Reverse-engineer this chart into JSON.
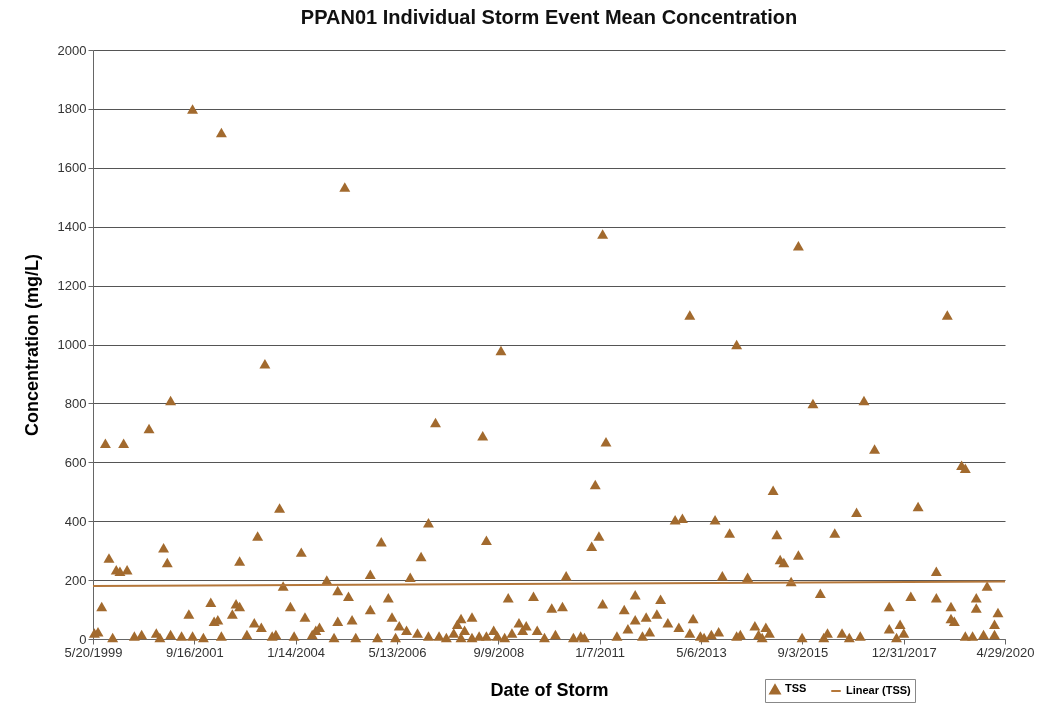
{
  "chart_data": {
    "type": "scatter",
    "title": "PPAN01 Individual Storm Event Mean Concentration",
    "xlabel": "Date of Storm",
    "ylabel": "Concentration (mg/L)",
    "xlim": [
      "1999-05-20",
      "2020-04-29"
    ],
    "xticks": [
      {
        "value": "1999-05-20",
        "label": "5/20/1999"
      },
      {
        "value": "2001-09-16",
        "label": "9/16/2001"
      },
      {
        "value": "2004-01-14",
        "label": "1/14/2004"
      },
      {
        "value": "2006-05-13",
        "label": "5/13/2006"
      },
      {
        "value": "2008-09-09",
        "label": "9/9/2008"
      },
      {
        "value": "2011-01-07",
        "label": "1/7/2011"
      },
      {
        "value": "2013-05-06",
        "label": "5/6/2013"
      },
      {
        "value": "2015-09-03",
        "label": "9/3/2015"
      },
      {
        "value": "2017-12-31",
        "label": "12/31/2017"
      },
      {
        "value": "2020-04-29",
        "label": "4/29/2020"
      }
    ],
    "ylim": [
      0,
      2000
    ],
    "yticks": [
      0,
      200,
      400,
      600,
      800,
      1000,
      1200,
      1400,
      1600,
      1800,
      2000
    ],
    "grid": "y",
    "legend": "bottom right",
    "series": [
      {
        "name": "TSS",
        "type": "scatter",
        "marker": "triangle",
        "color": "#a26a2e",
        "x": [
          "1999-06",
          "1999-07",
          "1999-08",
          "1999-09",
          "1999-10",
          "1999-11",
          "1999-12",
          "2000-01",
          "2000-02",
          "2000-03",
          "2000-05",
          "2000-07",
          "2000-09",
          "2000-11",
          "2000-12",
          "2001-01",
          "2001-02",
          "2001-03",
          "2001-03",
          "2001-06",
          "2001-08",
          "2001-09",
          "2001-09",
          "2001-12",
          "2002-02",
          "2002-03",
          "2002-04",
          "2002-05",
          "2002-05",
          "2002-08",
          "2002-09",
          "2002-10",
          "2002-10",
          "2002-12",
          "2003-02",
          "2003-03",
          "2003-04",
          "2003-05",
          "2003-07",
          "2003-08",
          "2003-09",
          "2003-10",
          "2003-12",
          "2004-01",
          "2004-03",
          "2004-04",
          "2004-06",
          "2004-07",
          "2004-08",
          "2004-10",
          "2004-12",
          "2005-01",
          "2005-01",
          "2005-03",
          "2005-04",
          "2005-05",
          "2005-06",
          "2005-10",
          "2005-10",
          "2005-12",
          "2006-01",
          "2006-03",
          "2006-04",
          "2006-05",
          "2006-06",
          "2006-08",
          "2006-09",
          "2006-11",
          "2006-12",
          "2007-02",
          "2007-02",
          "2007-04",
          "2007-05",
          "2007-07",
          "2007-09",
          "2007-10",
          "2007-11",
          "2007-11",
          "2007-12",
          "2008-02",
          "2008-02",
          "2008-04",
          "2008-05",
          "2008-06",
          "2008-06",
          "2008-08",
          "2008-09",
          "2008-10",
          "2008-11",
          "2008-12",
          "2009-01",
          "2009-03",
          "2009-04",
          "2009-05",
          "2009-07",
          "2009-08",
          "2009-10",
          "2009-12",
          "2010-01",
          "2010-03",
          "2010-04",
          "2010-06",
          "2010-08",
          "2010-09",
          "2010-11",
          "2010-12",
          "2011-01",
          "2011-02",
          "2011-02",
          "2011-03",
          "2011-06",
          "2011-08",
          "2011-09",
          "2011-11",
          "2011-11",
          "2012-01",
          "2012-02",
          "2012-03",
          "2012-05",
          "2012-06",
          "2012-08",
          "2012-10",
          "2012-11",
          "2012-12",
          "2013-02",
          "2013-02",
          "2013-03",
          "2013-05",
          "2013-06",
          "2013-08",
          "2013-09",
          "2013-10",
          "2013-11",
          "2014-01",
          "2014-03",
          "2014-03",
          "2014-04",
          "2014-06",
          "2014-08",
          "2014-09",
          "2014-10",
          "2014-11",
          "2014-12",
          "2015-01",
          "2015-02",
          "2015-03",
          "2015-04",
          "2015-06",
          "2015-08",
          "2015-08",
          "2015-09",
          "2015-12",
          "2016-02",
          "2016-03",
          "2016-04",
          "2016-06",
          "2016-08",
          "2016-10",
          "2016-12",
          "2017-01",
          "2017-02",
          "2017-05",
          "2017-09",
          "2017-09",
          "2017-11",
          "2017-12",
          "2018-01",
          "2018-03",
          "2018-05",
          "2018-10",
          "2018-10",
          "2019-01",
          "2019-02",
          "2019-02",
          "2019-03",
          "2019-05",
          "2019-06",
          "2019-06",
          "2019-08",
          "2019-09",
          "2019-09",
          "2019-11",
          "2019-12",
          "2020-02",
          "2020-02",
          "2020-03"
        ],
        "values": [
          20,
          25,
          110,
          665,
          275,
          5,
          235,
          230,
          665,
          235,
          10,
          15,
          715,
          20,
          5,
          310,
          260,
          810,
          15,
          10,
          85,
          10,
          1800,
          5,
          125,
          60,
          65,
          10,
          1720,
          85,
          120,
          265,
          110,
          15,
          55,
          350,
          40,
          935,
          10,
          15,
          445,
          180,
          110,
          10,
          295,
          75,
          15,
          30,
          40,
          200,
          5,
          60,
          165,
          1535,
          145,
          65,
          5,
          220,
          100,
          5,
          330,
          140,
          75,
          5,
          45,
          30,
          210,
          20,
          280,
          10,
          395,
          735,
          10,
          5,
          20,
          50,
          70,
          5,
          30,
          75,
          5,
          10,
          690,
          335,
          10,
          30,
          10,
          980,
          5,
          140,
          20,
          55,
          30,
          45,
          145,
          30,
          5,
          105,
          15,
          110,
          215,
          5,
          10,
          5,
          315,
          525,
          350,
          1375,
          120,
          670,
          10,
          100,
          35,
          65,
          150,
          10,
          75,
          25,
          85,
          135,
          55,
          405,
          40,
          410,
          20,
          1100,
          70,
          10,
          5,
          15,
          405,
          25,
          215,
          360,
          1000,
          10,
          15,
          210,
          45,
          15,
          5,
          40,
          20,
          505,
          355,
          270,
          260,
          195,
          1335,
          285,
          5,
          800,
          155,
          5,
          20,
          360,
          20,
          5,
          430,
          10,
          810,
          645,
          110,
          35,
          5,
          50,
          20,
          145,
          450,
          230,
          140,
          1100,
          110,
          70,
          60,
          590,
          580,
          10,
          10,
          105,
          140,
          15,
          180,
          15,
          50,
          90
        ]
      },
      {
        "name": "Linear (TSS)",
        "type": "line",
        "color": "#b5773a",
        "x": [
          "1999-05-20",
          "2020-04-29"
        ],
        "values": [
          180,
          195
        ]
      }
    ]
  }
}
